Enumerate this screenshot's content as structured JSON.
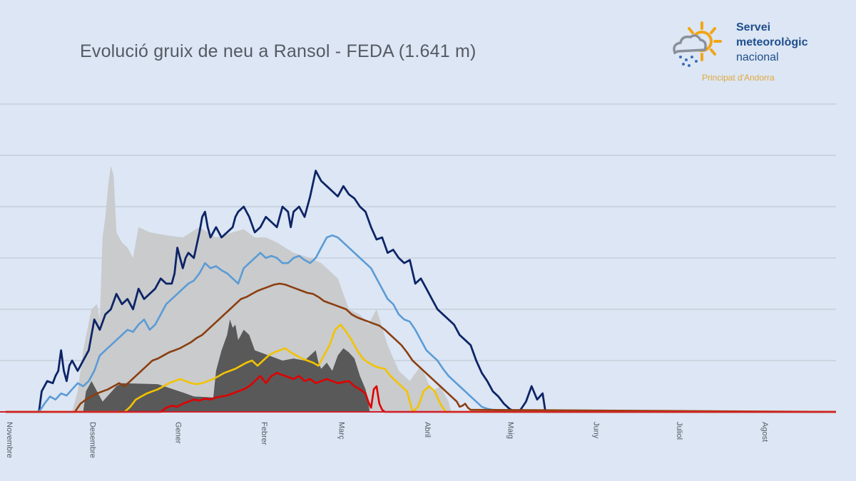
{
  "logo": {
    "line1": "Servei",
    "line2": "meteorològic",
    "line3": "nacional",
    "subtitle": "Principat d'Andorra",
    "icon": "sun-cloud-snow-icon"
  },
  "chart_data": {
    "type": "line",
    "title": "Evolució gruix de neu a Ransol - FEDA (1.641 m)",
    "xlabel": "",
    "ylabel": "",
    "x_unit": "day of season (0 = 1 Novembre)",
    "xlim": [
      0,
      300
    ],
    "ylim": [
      0,
      300
    ],
    "grid": true,
    "legend": "none",
    "x_ticks": [
      {
        "x": 0,
        "label": "Novembre"
      },
      {
        "x": 30,
        "label": "Desembre"
      },
      {
        "x": 61,
        "label": "Gener"
      },
      {
        "x": 92,
        "label": "Febrer"
      },
      {
        "x": 120,
        "label": "Març"
      },
      {
        "x": 151,
        "label": "Abril"
      },
      {
        "x": 181,
        "label": "Maig"
      },
      {
        "x": 212,
        "label": "Juny"
      },
      {
        "x": 242,
        "label": "Juliol"
      },
      {
        "x": 273,
        "label": "Agost"
      }
    ],
    "y_gridlines": [
      50,
      100,
      150,
      200,
      250,
      300
    ],
    "areas": [
      {
        "color": "#c9cbcd",
        "x": [
          0,
          24,
          26,
          28,
          31,
          33,
          34,
          35,
          36,
          37,
          38,
          39,
          40,
          42,
          44,
          46,
          48,
          52,
          58,
          64,
          70,
          76,
          82,
          86,
          90,
          94,
          98,
          104,
          110,
          114,
          120,
          124,
          128,
          131,
          134,
          138,
          142,
          146,
          150,
          154,
          157,
          160,
          161
        ],
        "y": [
          0,
          0,
          20,
          60,
          100,
          105,
          90,
          170,
          190,
          220,
          240,
          230,
          175,
          165,
          160,
          150,
          180,
          175,
          172,
          170,
          180,
          170,
          175,
          178,
          170,
          170,
          165,
          155,
          150,
          145,
          130,
          100,
          95,
          85,
          100,
          65,
          40,
          30,
          45,
          20,
          25,
          10,
          0
        ]
      },
      {
        "color": "#595959",
        "x": [
          0,
          28,
          29,
          31,
          35,
          40,
          42,
          55,
          65,
          68,
          75,
          76,
          78,
          80,
          81,
          82,
          83,
          84,
          86,
          88,
          90,
          95,
          100,
          104,
          108,
          110,
          112,
          113,
          114,
          116,
          118,
          120,
          122,
          124,
          126,
          128,
          130,
          131,
          131.5
        ],
        "y": [
          0,
          0,
          20,
          30,
          10,
          25,
          28,
          27,
          18,
          15,
          14,
          40,
          60,
          75,
          90,
          82,
          85,
          70,
          80,
          75,
          60,
          55,
          50,
          52,
          50,
          55,
          60,
          48,
          42,
          48,
          40,
          55,
          62,
          58,
          52,
          35,
          22,
          10,
          0
        ]
      }
    ],
    "series": [
      {
        "color": "#0d2466",
        "x": [
          0,
          12,
          13,
          15,
          17,
          18,
          19,
          20,
          21,
          22,
          23,
          24,
          26,
          28,
          30,
          32,
          34,
          36,
          38,
          40,
          42,
          44,
          46,
          48,
          50,
          52,
          54,
          56,
          58,
          60,
          61,
          62,
          63,
          64,
          65,
          66,
          68,
          70,
          71,
          72,
          73,
          74,
          76,
          78,
          80,
          82,
          83,
          84,
          86,
          88,
          90,
          92,
          94,
          96,
          98,
          100,
          102,
          103,
          104,
          106,
          108,
          110,
          112,
          114,
          116,
          118,
          120,
          122,
          124,
          126,
          128,
          130,
          132,
          134,
          136,
          138,
          140,
          142,
          144,
          146,
          148,
          150,
          152,
          154,
          156,
          158,
          160,
          162,
          164,
          166,
          168,
          170,
          172,
          174,
          176,
          178,
          180,
          182,
          184,
          186,
          188,
          190,
          192,
          194,
          195,
          300
        ],
        "y": [
          0,
          0,
          20,
          30,
          28,
          35,
          40,
          60,
          40,
          30,
          45,
          50,
          40,
          50,
          60,
          90,
          80,
          95,
          100,
          115,
          105,
          110,
          100,
          120,
          110,
          115,
          120,
          130,
          125,
          125,
          135,
          160,
          150,
          140,
          150,
          155,
          150,
          175,
          190,
          195,
          180,
          170,
          180,
          170,
          175,
          180,
          190,
          195,
          200,
          190,
          175,
          180,
          190,
          185,
          180,
          200,
          195,
          180,
          195,
          200,
          190,
          210,
          235,
          225,
          220,
          215,
          210,
          220,
          212,
          208,
          200,
          195,
          180,
          168,
          170,
          155,
          158,
          150,
          145,
          148,
          125,
          130,
          120,
          110,
          100,
          95,
          90,
          85,
          75,
          70,
          65,
          50,
          38,
          30,
          20,
          15,
          8,
          3,
          0,
          2,
          10,
          25,
          12,
          18,
          0,
          0
        ]
      },
      {
        "color": "#5b9bd5",
        "x": [
          0,
          12,
          14,
          16,
          18,
          20,
          22,
          24,
          26,
          28,
          30,
          32,
          34,
          36,
          38,
          40,
          42,
          44,
          46,
          48,
          50,
          52,
          54,
          56,
          58,
          60,
          62,
          64,
          66,
          68,
          70,
          72,
          74,
          76,
          78,
          80,
          82,
          84,
          86,
          88,
          90,
          92,
          94,
          96,
          98,
          100,
          102,
          104,
          106,
          108,
          110,
          112,
          114,
          116,
          118,
          120,
          122,
          124,
          126,
          128,
          130,
          132,
          134,
          136,
          138,
          140,
          142,
          144,
          146,
          148,
          150,
          152,
          154,
          156,
          158,
          160,
          162,
          164,
          166,
          168,
          170,
          172,
          174,
          176,
          178,
          180,
          300
        ],
        "y": [
          0,
          0,
          8,
          15,
          12,
          18,
          16,
          22,
          28,
          25,
          30,
          40,
          55,
          60,
          65,
          70,
          75,
          80,
          78,
          85,
          90,
          80,
          85,
          95,
          105,
          110,
          115,
          120,
          125,
          128,
          135,
          145,
          140,
          142,
          138,
          135,
          130,
          125,
          140,
          145,
          150,
          155,
          150,
          152,
          150,
          145,
          145,
          150,
          152,
          148,
          145,
          150,
          160,
          170,
          172,
          170,
          165,
          160,
          155,
          150,
          145,
          140,
          130,
          120,
          110,
          105,
          95,
          90,
          88,
          80,
          70,
          60,
          55,
          50,
          42,
          35,
          30,
          25,
          20,
          15,
          10,
          5,
          3,
          2,
          1,
          0,
          0
        ]
      },
      {
        "color": "#8b3e10",
        "x": [
          0,
          25,
          27,
          29,
          31,
          33,
          35,
          37,
          39,
          41,
          43,
          45,
          47,
          49,
          51,
          53,
          55,
          57,
          59,
          61,
          63,
          65,
          67,
          69,
          71,
          73,
          75,
          77,
          79,
          81,
          83,
          85,
          87,
          89,
          91,
          93,
          95,
          97,
          99,
          101,
          103,
          105,
          107,
          109,
          111,
          113,
          115,
          117,
          119,
          121,
          123,
          125,
          127,
          129,
          131,
          133,
          135,
          137,
          139,
          141,
          143,
          145,
          147,
          149,
          151,
          153,
          155,
          157,
          159,
          161,
          163,
          164,
          165,
          166,
          167,
          168,
          300
        ],
        "y": [
          0,
          0,
          8,
          12,
          15,
          18,
          20,
          22,
          25,
          28,
          25,
          30,
          35,
          40,
          45,
          50,
          52,
          55,
          58,
          60,
          62,
          65,
          68,
          72,
          75,
          80,
          85,
          90,
          95,
          100,
          105,
          110,
          112,
          115,
          118,
          120,
          122,
          124,
          125,
          124,
          122,
          120,
          118,
          116,
          115,
          112,
          108,
          106,
          104,
          102,
          100,
          95,
          92,
          90,
          88,
          86,
          84,
          80,
          75,
          70,
          65,
          58,
          50,
          45,
          40,
          35,
          30,
          25,
          20,
          15,
          10,
          5,
          6,
          8,
          4,
          2,
          0
        ]
      },
      {
        "color": "#f2c300",
        "x": [
          0,
          43,
          45,
          47,
          49,
          51,
          53,
          55,
          57,
          59,
          61,
          63,
          65,
          67,
          69,
          71,
          73,
          75,
          77,
          79,
          81,
          83,
          85,
          87,
          89,
          91,
          93,
          95,
          97,
          99,
          101,
          103,
          105,
          107,
          109,
          111,
          113,
          115,
          117,
          119,
          121,
          123,
          125,
          127,
          129,
          131,
          133,
          135,
          137,
          139,
          141,
          143,
          145,
          147,
          149,
          151,
          153,
          155,
          157,
          159,
          300
        ],
        "y": [
          0,
          0,
          5,
          12,
          15,
          18,
          20,
          22,
          25,
          28,
          30,
          32,
          30,
          28,
          27,
          28,
          30,
          32,
          35,
          38,
          40,
          42,
          45,
          48,
          50,
          45,
          50,
          55,
          58,
          60,
          62,
          58,
          55,
          52,
          50,
          48,
          45,
          55,
          65,
          80,
          85,
          78,
          70,
          60,
          52,
          48,
          45,
          43,
          42,
          35,
          30,
          25,
          20,
          0,
          5,
          20,
          25,
          20,
          8,
          0,
          0
        ]
      },
      {
        "color": "#e00000",
        "x": [
          0,
          56,
          58,
          60,
          62,
          64,
          66,
          68,
          70,
          72,
          74,
          76,
          78,
          80,
          82,
          84,
          86,
          88,
          90,
          92,
          94,
          96,
          98,
          100,
          102,
          104,
          106,
          108,
          110,
          112,
          114,
          116,
          118,
          120,
          122,
          124,
          126,
          128,
          130,
          131,
          132,
          133,
          134,
          135,
          136,
          137,
          300
        ],
        "y": [
          0,
          0,
          4,
          6,
          5,
          8,
          10,
          12,
          11,
          13,
          12,
          14,
          15,
          16,
          18,
          20,
          22,
          25,
          30,
          35,
          28,
          35,
          38,
          36,
          34,
          32,
          35,
          30,
          32,
          28,
          30,
          32,
          30,
          28,
          29,
          30,
          25,
          22,
          18,
          10,
          4,
          22,
          25,
          8,
          2,
          0,
          0
        ]
      }
    ]
  }
}
